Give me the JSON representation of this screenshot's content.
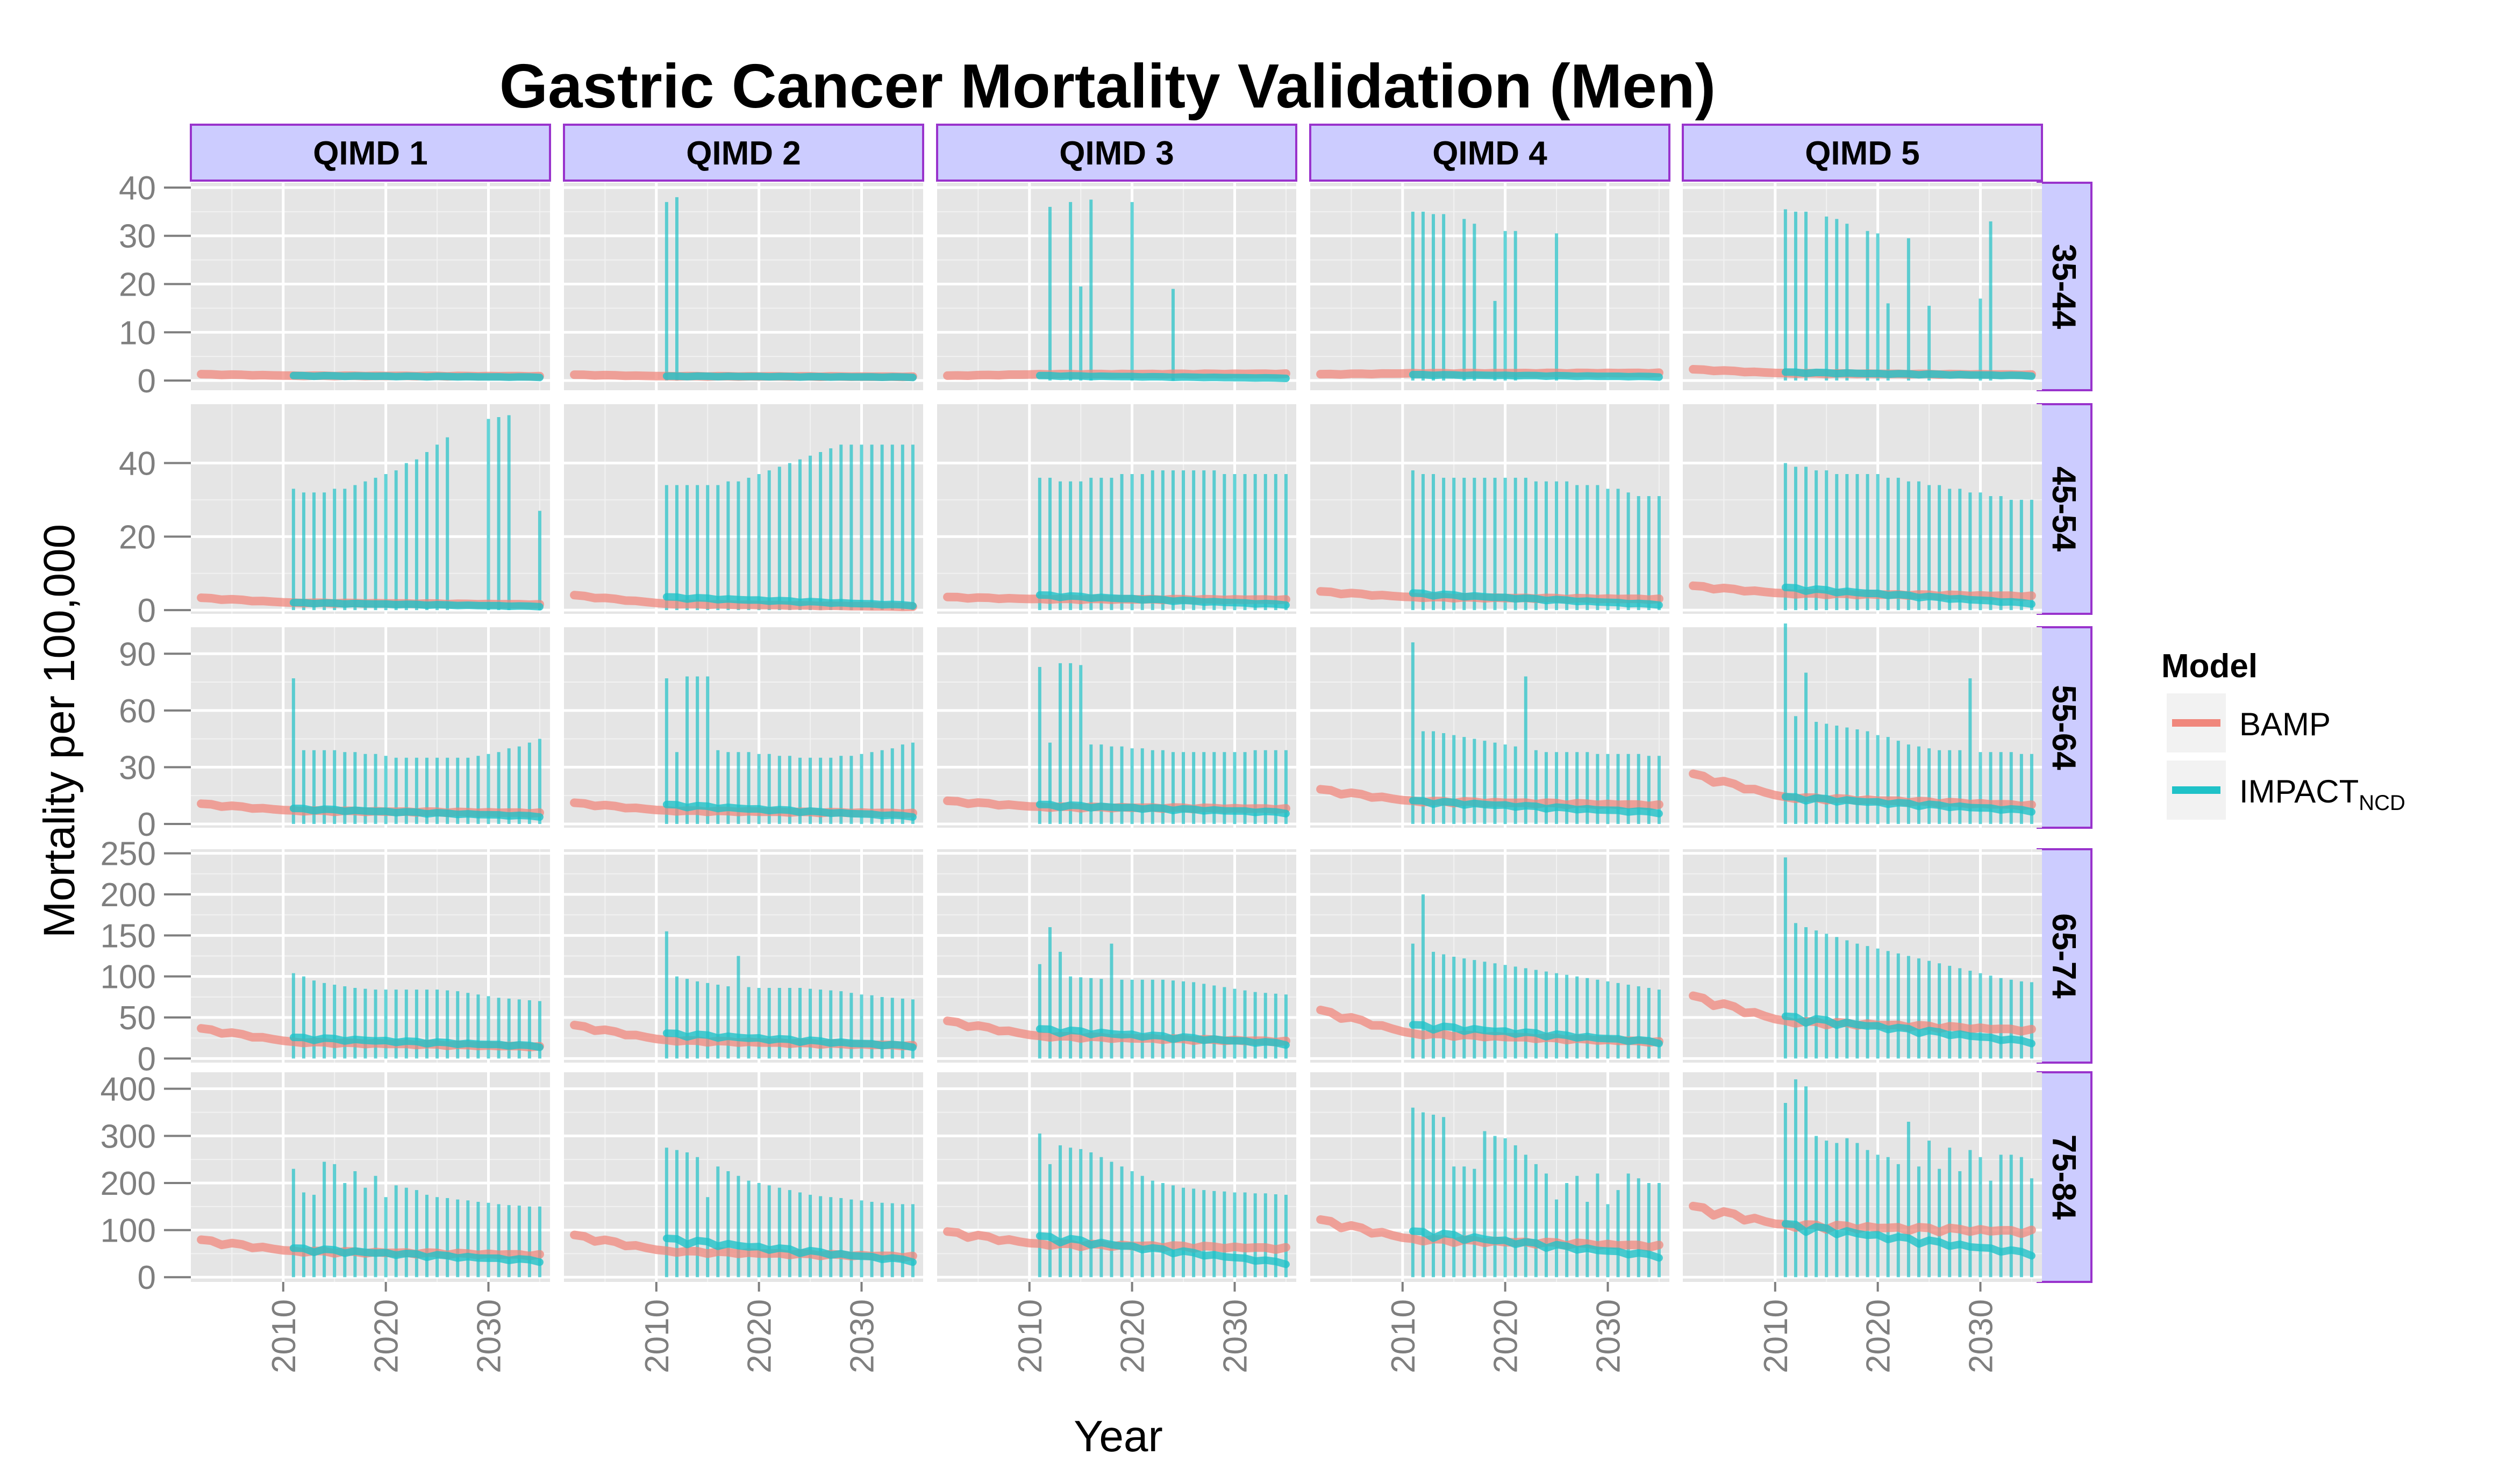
{
  "chart_data": {
    "type": "line",
    "title": "Gastric Cancer Mortality Validation (Men)",
    "xlabel": "Year",
    "ylabel": "Mortality per 100,000",
    "x_ticks": [
      2010,
      2020,
      2030
    ],
    "xlim": [
      2001,
      2036
    ],
    "grid": true,
    "columns": [
      "QIMD 1",
      "QIMD 2",
      "QIMD 3",
      "QIMD 4",
      "QIMD 5"
    ],
    "rows": [
      {
        "label": "35-44",
        "ylim": [
          -2,
          41
        ],
        "ticks": [
          0,
          10,
          20,
          30,
          40
        ]
      },
      {
        "label": "45-54",
        "ylim": [
          -1,
          56
        ],
        "ticks": [
          0,
          20,
          40
        ]
      },
      {
        "label": "55-64",
        "ylim": [
          -2,
          104
        ],
        "ticks": [
          0,
          30,
          60,
          90
        ]
      },
      {
        "label": "65-74",
        "ylim": [
          -5,
          255
        ],
        "ticks": [
          0,
          50,
          100,
          150,
          200,
          250
        ]
      },
      {
        "label": "75-84",
        "ylim": [
          -10,
          435
        ],
        "ticks": [
          0,
          100,
          200,
          300,
          400
        ]
      }
    ],
    "legend": {
      "title": "Model",
      "position": "right",
      "items": [
        {
          "label": "BAMP",
          "sub": "",
          "color": "#f0877c"
        },
        {
          "label": "IMPACT",
          "sub": "NCD",
          "color": "#1fc2c8"
        }
      ]
    },
    "colors": {
      "bamp": "#f0877c",
      "impact": "#1fc2c8",
      "panel": "#e5e5e5",
      "strip": "#ccccff",
      "strip_border": "#9933cc"
    },
    "bamp_years": [
      2002,
      2011
    ],
    "impact_years": [
      2011,
      2035
    ],
    "panels": [
      {
        "row": 0,
        "col": 0,
        "bamp": [
          1.3,
          1.0
        ],
        "impact": [
          1.0,
          0.7
        ],
        "upper": [],
        "lower": [],
        "spikes": []
      },
      {
        "row": 0,
        "col": 1,
        "bamp": [
          1.2,
          0.9
        ],
        "impact": [
          0.9,
          0.7
        ],
        "upper": [],
        "lower": [],
        "spikes": [
          [
            2011,
            37
          ],
          [
            2012,
            38
          ]
        ]
      },
      {
        "row": 0,
        "col": 2,
        "bamp": [
          1.0,
          1.3
        ],
        "impact": [
          1.0,
          0.5
        ],
        "upper": [],
        "lower": [],
        "spikes": [
          [
            2012,
            36
          ],
          [
            2014,
            37
          ],
          [
            2015,
            19.5
          ],
          [
            2016,
            37.5
          ],
          [
            2020,
            37
          ],
          [
            2024,
            19
          ]
        ]
      },
      {
        "row": 0,
        "col": 3,
        "bamp": [
          1.3,
          1.5
        ],
        "impact": [
          1.2,
          0.8
        ],
        "upper": [],
        "lower": [],
        "spikes": [
          [
            2011,
            35
          ],
          [
            2012,
            35
          ],
          [
            2013,
            34.5
          ],
          [
            2014,
            34.5
          ],
          [
            2016,
            33.5
          ],
          [
            2017,
            32.5
          ],
          [
            2019,
            16.5
          ],
          [
            2020,
            31
          ],
          [
            2021,
            31
          ],
          [
            2025,
            30.5
          ]
        ]
      },
      {
        "row": 0,
        "col": 4,
        "bamp": [
          2.3,
          1.5
        ],
        "impact": [
          1.7,
          1.0
        ],
        "upper": [],
        "lower": [],
        "spikes": [
          [
            2011,
            35.5
          ],
          [
            2012,
            35
          ],
          [
            2013,
            35
          ],
          [
            2015,
            34
          ],
          [
            2016,
            33.5
          ],
          [
            2017,
            32.5
          ],
          [
            2019,
            31
          ],
          [
            2020,
            30.5
          ],
          [
            2021,
            16
          ],
          [
            2023,
            29.5
          ],
          [
            2025,
            15.5
          ],
          [
            2030,
            17
          ],
          [
            2031,
            33
          ]
        ]
      },
      {
        "row": 1,
        "col": 0,
        "bamp": [
          3.3,
          2.0
        ],
        "impact": [
          2.0,
          1.0
        ],
        "upper": [
          33,
          32,
          32,
          32,
          33,
          33,
          34,
          35,
          36,
          37,
          38,
          40,
          41,
          43,
          45,
          47,
          0,
          0,
          0,
          0,
          0,
          0,
          0,
          0,
          27
        ],
        "lower": [],
        "spikes": [
          [
            2030,
            52
          ],
          [
            2031,
            52.5
          ],
          [
            2032,
            53
          ]
        ]
      },
      {
        "row": 1,
        "col": 1,
        "bamp": [
          4.0,
          1.7
        ],
        "impact": [
          3.5,
          1.3
        ],
        "upper": [
          34,
          34,
          34,
          34,
          34,
          34,
          35,
          35,
          36,
          37,
          38,
          39,
          40,
          41,
          42,
          43,
          44,
          45,
          45,
          45,
          45,
          45,
          45,
          45,
          45
        ],
        "lower": [],
        "spikes": []
      },
      {
        "row": 1,
        "col": 2,
        "bamp": [
          3.5,
          3.0
        ],
        "impact": [
          4.0,
          1.5
        ],
        "upper": [
          36,
          36,
          35,
          35,
          35,
          36,
          36,
          36,
          37,
          37,
          37,
          38,
          38,
          38,
          38,
          38,
          38,
          38,
          37,
          37,
          37,
          37,
          37,
          37,
          37
        ],
        "lower": [],
        "spikes": []
      },
      {
        "row": 1,
        "col": 3,
        "bamp": [
          5.0,
          3.5
        ],
        "impact": [
          4.5,
          1.5
        ],
        "upper": [
          38,
          37,
          37,
          36,
          36,
          36,
          36,
          36,
          36,
          36,
          36,
          36,
          35,
          35,
          35,
          35,
          34,
          34,
          34,
          33,
          33,
          32,
          31,
          31,
          31
        ],
        "lower": [],
        "spikes": []
      },
      {
        "row": 1,
        "col": 4,
        "bamp": [
          6.5,
          4.5
        ],
        "impact": [
          6.0,
          1.8
        ],
        "upper": [
          40,
          39,
          39,
          38,
          38,
          37,
          37,
          37,
          37,
          37,
          36,
          36,
          35,
          35,
          34,
          34,
          33,
          33,
          32,
          32,
          31,
          31,
          30,
          30,
          30
        ],
        "lower": [],
        "spikes": []
      },
      {
        "row": 2,
        "col": 0,
        "bamp": [
          10.5,
          7.0
        ],
        "impact": [
          8.0,
          4.0
        ],
        "upper": [
          77,
          39,
          39,
          39,
          39,
          38,
          38,
          37,
          37,
          36,
          35,
          35,
          35,
          35,
          35,
          35,
          35,
          35,
          36,
          37,
          38,
          40,
          41,
          43,
          45
        ],
        "lower": [],
        "spikes": []
      },
      {
        "row": 2,
        "col": 1,
        "bamp": [
          11.0,
          7.0
        ],
        "impact": [
          10.0,
          4.0
        ],
        "upper": [
          77,
          38,
          78,
          78,
          78,
          39,
          38,
          38,
          38,
          37,
          37,
          36,
          36,
          35,
          35,
          35,
          35,
          36,
          36,
          37,
          38,
          39,
          40,
          42,
          43
        ],
        "lower": [],
        "spikes": []
      },
      {
        "row": 2,
        "col": 2,
        "bamp": [
          12.0,
          9.0
        ],
        "impact": [
          10.0,
          6.0
        ],
        "upper": [
          83,
          43,
          85,
          85,
          84,
          42,
          42,
          41,
          41,
          40,
          40,
          39,
          39,
          38,
          38,
          38,
          38,
          38,
          38,
          38,
          38,
          39,
          39,
          39,
          39
        ],
        "lower": [],
        "spikes": []
      },
      {
        "row": 2,
        "col": 3,
        "bamp": [
          18.0,
          12.0
        ],
        "impact": [
          12.0,
          6.0
        ],
        "upper": [
          96,
          49,
          49,
          48,
          47,
          46,
          45,
          44,
          43,
          42,
          41,
          78,
          39,
          38,
          38,
          38,
          38,
          38,
          37,
          37,
          37,
          37,
          37,
          36,
          36
        ],
        "lower": [],
        "spikes": []
      },
      {
        "row": 2,
        "col": 4,
        "bamp": [
          26.0,
          14.0
        ],
        "impact": [
          14.0,
          7.0
        ],
        "upper": [
          106,
          57,
          80,
          54,
          53,
          52,
          51,
          50,
          49,
          47,
          46,
          44,
          42,
          41,
          40,
          39,
          39,
          39,
          77,
          38,
          38,
          38,
          38,
          37,
          37
        ],
        "lower": [],
        "spikes": []
      },
      {
        "row": 3,
        "col": 0,
        "bamp": [
          36.0,
          20.0
        ],
        "impact": [
          25.0,
          15.0
        ],
        "upper": [
          104,
          100,
          95,
          92,
          90,
          88,
          86,
          85,
          84,
          84,
          84,
          84,
          84,
          84,
          84,
          83,
          82,
          80,
          78,
          76,
          74,
          73,
          72,
          71,
          70
        ],
        "lower": [],
        "spikes": []
      },
      {
        "row": 3,
        "col": 1,
        "bamp": [
          40.0,
          22.0
        ],
        "impact": [
          30.0,
          15.0
        ],
        "upper": [
          155,
          100,
          97,
          94,
          92,
          90,
          88,
          125,
          87,
          86,
          86,
          86,
          86,
          86,
          85,
          84,
          83,
          82,
          80,
          78,
          77,
          75,
          74,
          73,
          72
        ],
        "lower": [],
        "spikes": []
      },
      {
        "row": 3,
        "col": 2,
        "bamp": [
          45.0,
          27.0
        ],
        "impact": [
          35.0,
          18.0
        ],
        "upper": [
          115,
          160,
          130,
          100,
          99,
          98,
          97,
          140,
          96,
          96,
          96,
          96,
          96,
          95,
          94,
          93,
          91,
          89,
          87,
          85,
          83,
          81,
          80,
          79,
          78
        ],
        "lower": [],
        "spikes": []
      },
      {
        "row": 3,
        "col": 3,
        "bamp": [
          58.0,
          30.0
        ],
        "impact": [
          40.0,
          20.0
        ],
        "upper": [
          140,
          200,
          130,
          127,
          124,
          122,
          120,
          118,
          116,
          114,
          112,
          110,
          108,
          106,
          104,
          102,
          100,
          98,
          96,
          94,
          92,
          90,
          88,
          86,
          84
        ],
        "lower": [],
        "spikes": []
      },
      {
        "row": 3,
        "col": 4,
        "bamp": [
          75.0,
          45.0
        ],
        "impact": [
          50.0,
          20.0
        ],
        "upper": [
          245,
          165,
          160,
          156,
          152,
          148,
          144,
          140,
          137,
          134,
          131,
          128,
          125,
          122,
          119,
          116,
          113,
          110,
          107,
          104,
          101,
          98,
          96,
          94,
          93
        ],
        "lower": [],
        "spikes": []
      },
      {
        "row": 4,
        "col": 0,
        "bamp": [
          78.0,
          55.0
        ],
        "impact": [
          60.0,
          35.0
        ],
        "upper": [
          230,
          180,
          175,
          245,
          240,
          200,
          225,
          190,
          215,
          170,
          195,
          190,
          185,
          175,
          170,
          168,
          165,
          163,
          160,
          158,
          155,
          153,
          152,
          150,
          150
        ],
        "lower": [],
        "spikes": []
      },
      {
        "row": 4,
        "col": 1,
        "bamp": [
          88.0,
          55.0
        ],
        "impact": [
          80.0,
          35.0
        ],
        "upper": [
          275,
          270,
          265,
          255,
          170,
          235,
          225,
          215,
          205,
          200,
          195,
          190,
          185,
          180,
          175,
          172,
          170,
          168,
          165,
          163,
          160,
          158,
          157,
          155,
          155
        ],
        "lower": [],
        "spikes": []
      },
      {
        "row": 4,
        "col": 2,
        "bamp": [
          95.0,
          70.0
        ],
        "impact": [
          85.0,
          30.0
        ],
        "upper": [
          305,
          240,
          280,
          275,
          272,
          265,
          255,
          245,
          235,
          225,
          215,
          205,
          200,
          195,
          190,
          188,
          185,
          183,
          182,
          180,
          180,
          178,
          178,
          176,
          175
        ],
        "lower": [],
        "spikes": []
      },
      {
        "row": 4,
        "col": 3,
        "bamp": [
          120.0,
          80.0
        ],
        "impact": [
          95.0,
          45.0
        ],
        "upper": [
          360,
          350,
          345,
          340,
          235,
          235,
          230,
          310,
          300,
          295,
          280,
          260,
          240,
          220,
          165,
          200,
          215,
          160,
          220,
          155,
          185,
          220,
          210,
          200,
          200
        ],
        "lower": [],
        "spikes": []
      },
      {
        "row": 4,
        "col": 4,
        "bamp": [
          148.0,
          110.0
        ],
        "impact": [
          110.0,
          50.0
        ],
        "upper": [
          370,
          420,
          405,
          300,
          290,
          285,
          295,
          285,
          270,
          260,
          255,
          240,
          330,
          235,
          290,
          230,
          275,
          225,
          270,
          255,
          205,
          260,
          260,
          255,
          210
        ],
        "lower": [],
        "spikes": []
      }
    ]
  }
}
